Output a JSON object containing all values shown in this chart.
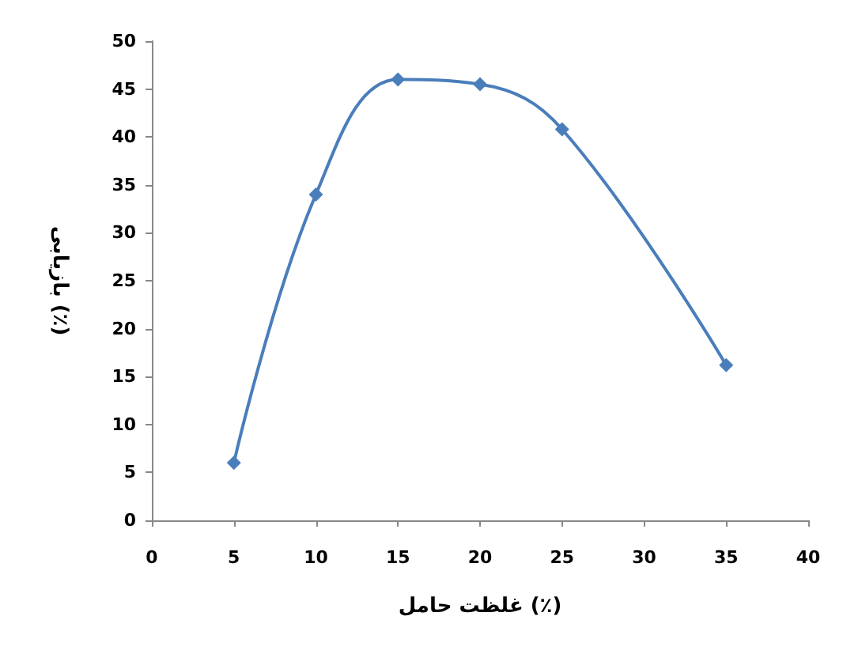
{
  "chart_data": {
    "type": "line",
    "xlabel": "غلظت حامل (٪)",
    "ylabel": "بازیابی (٪)",
    "x": [
      5,
      10,
      15,
      20,
      25,
      35
    ],
    "series": [
      {
        "color": "#4a7ebb",
        "values": [
          6,
          34,
          46,
          45.5,
          40.8,
          16.2
        ]
      }
    ],
    "xlim": [
      0,
      40
    ],
    "xticks": [
      0,
      5,
      10,
      15,
      20,
      25,
      30,
      35,
      40
    ],
    "ylim": [
      0,
      50
    ],
    "yticks": [
      0,
      5,
      10,
      15,
      20,
      25,
      30,
      35,
      40,
      45,
      50
    ],
    "grid": false,
    "marker": "diamond",
    "line_style": "solid"
  }
}
